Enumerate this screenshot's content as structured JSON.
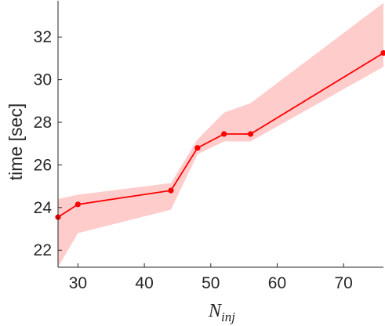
{
  "chart_data": {
    "type": "line",
    "title": "",
    "xlabel_main": "N",
    "xlabel_sub": "inj",
    "ylabel": "time [sec]",
    "xlim": [
      27,
      76
    ],
    "ylim": [
      21.2,
      33.7
    ],
    "xticks": [
      30,
      40,
      50,
      60,
      70
    ],
    "yticks": [
      22,
      24,
      26,
      28,
      30,
      32
    ],
    "grid": false,
    "legend": "none",
    "series": [
      {
        "x": [
          27,
          30,
          44,
          48,
          52,
          56,
          76
        ],
        "y": [
          23.55,
          24.15,
          24.8,
          26.8,
          27.45,
          27.45,
          31.25
        ],
        "lower": [
          21.2,
          22.8,
          23.9,
          26.5,
          27.1,
          27.1,
          30.6
        ],
        "upper": [
          24.4,
          24.6,
          25.15,
          27.2,
          28.45,
          28.9,
          33.6
        ],
        "line_color": "#ff0000",
        "band_color": "#ffcccc"
      }
    ]
  }
}
